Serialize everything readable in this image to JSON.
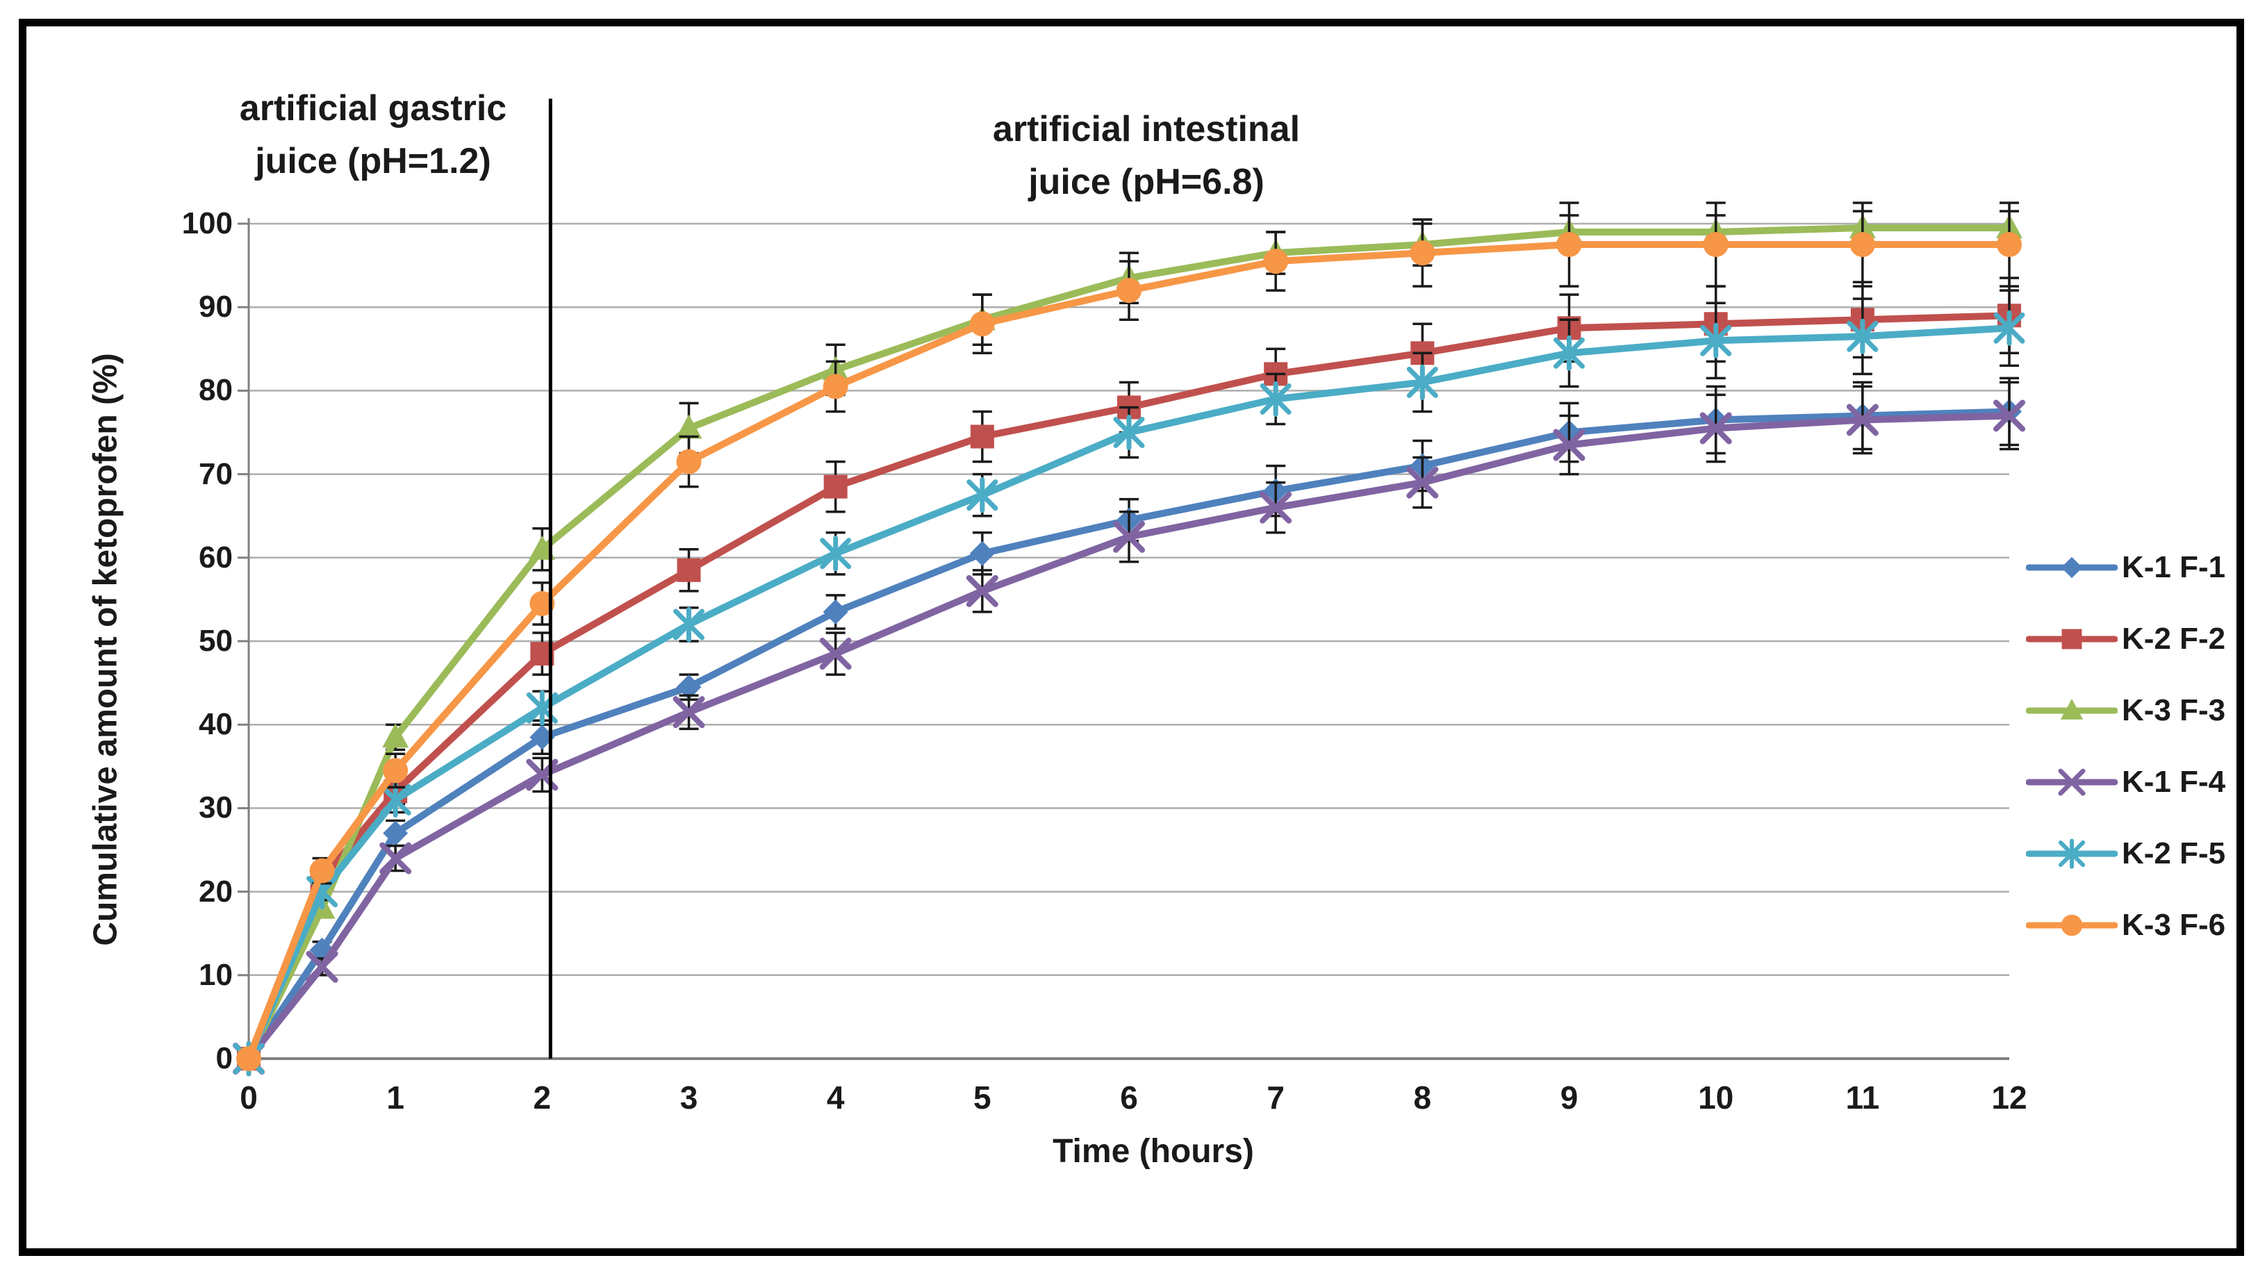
{
  "annotations": {
    "gastric": {
      "line1": "artificial gastric",
      "line2": "juice (pH=1.2)"
    },
    "intestinal": {
      "line1": "artificial intestinal",
      "line2": "juice (pH=6.8)"
    }
  },
  "chart_data": {
    "type": "line",
    "title": "",
    "xlabel": "Time (hours)",
    "ylabel": "Cumulative amount of ketoprofen (%)",
    "xlim": [
      0,
      12
    ],
    "ylim": [
      0,
      100
    ],
    "x_ticks": [
      0,
      1,
      2,
      3,
      4,
      5,
      6,
      7,
      8,
      9,
      10,
      11,
      12
    ],
    "y_ticks": [
      0,
      10,
      20,
      30,
      40,
      50,
      60,
      70,
      80,
      90,
      100
    ],
    "grid": "horizontal",
    "legend_position": "right",
    "error_bars": true,
    "separator": {
      "x": 2,
      "left_region": "artificial gastric juice (pH=1.2)",
      "right_region": "artificial intestinal juice (pH=6.8)"
    },
    "x": [
      0,
      0.5,
      1,
      2,
      3,
      4,
      5,
      6,
      7,
      8,
      9,
      10,
      11,
      12
    ],
    "series": [
      {
        "name": "K-1 F-1",
        "color": "#4F81BD",
        "marker": "diamond",
        "values": [
          0,
          13,
          27,
          38.5,
          44.5,
          53.5,
          60.5,
          64.5,
          68,
          71,
          75,
          76.5,
          77,
          77.5
        ],
        "errors": [
          0,
          1,
          1.5,
          2,
          1.5,
          2,
          2.5,
          2.5,
          3,
          3,
          3.5,
          4,
          4,
          4
        ]
      },
      {
        "name": "K-2 F-2",
        "color": "#C0504D",
        "marker": "square",
        "values": [
          0,
          21.5,
          32,
          48.5,
          58.5,
          68.5,
          74.5,
          78,
          82,
          84.5,
          87.5,
          88,
          88.5,
          89
        ],
        "errors": [
          0,
          1,
          1.5,
          2.5,
          2.5,
          3,
          3,
          3,
          3,
          3.5,
          4,
          4.5,
          4.5,
          4.5
        ]
      },
      {
        "name": "K-3 F-3",
        "color": "#9BBB59",
        "marker": "triangle",
        "values": [
          0,
          18,
          38.5,
          61,
          75.5,
          82.5,
          88.5,
          93.5,
          96.5,
          97.5,
          99,
          99,
          99.5,
          99.5
        ],
        "errors": [
          0,
          1,
          1.5,
          2.5,
          3,
          3,
          3,
          3,
          2.5,
          2.5,
          2,
          2,
          2,
          2
        ]
      },
      {
        "name": "K-1 F-4",
        "color": "#8064A2",
        "marker": "x",
        "values": [
          0,
          11,
          24,
          34,
          41.5,
          48.5,
          56,
          62.5,
          66,
          69,
          73.5,
          75.5,
          76.5,
          77
        ],
        "errors": [
          0,
          1,
          1.5,
          2,
          2,
          2.5,
          2.5,
          3,
          3,
          3,
          3.5,
          4,
          4,
          4
        ]
      },
      {
        "name": "K-2 F-5",
        "color": "#4BACC6",
        "marker": "asterisk",
        "values": [
          0,
          20,
          31,
          42,
          52,
          60.5,
          67.5,
          75,
          79,
          81,
          84.5,
          86,
          86.5,
          87.5
        ],
        "errors": [
          0,
          1,
          1.5,
          2,
          2,
          2.5,
          2.5,
          3,
          3,
          3.5,
          4,
          4.5,
          4.5,
          4.5
        ]
      },
      {
        "name": "K-3 F-6",
        "color": "#F79646",
        "marker": "circle",
        "values": [
          0,
          22.5,
          34.5,
          54.5,
          71.5,
          80.5,
          88,
          92,
          95.5,
          96.5,
          97.5,
          97.5,
          97.5,
          97.5
        ],
        "errors": [
          0,
          1.5,
          2,
          2.5,
          3,
          3,
          3.5,
          3.5,
          3.5,
          4,
          5,
          5,
          5,
          5
        ]
      }
    ],
    "colors": {
      "gridline": "#ADADAD",
      "axis": "#808080",
      "error_bar": "#1a1a1a",
      "separator_line": "#000000",
      "text": "#1a1a1a",
      "frame": "#000000"
    }
  }
}
